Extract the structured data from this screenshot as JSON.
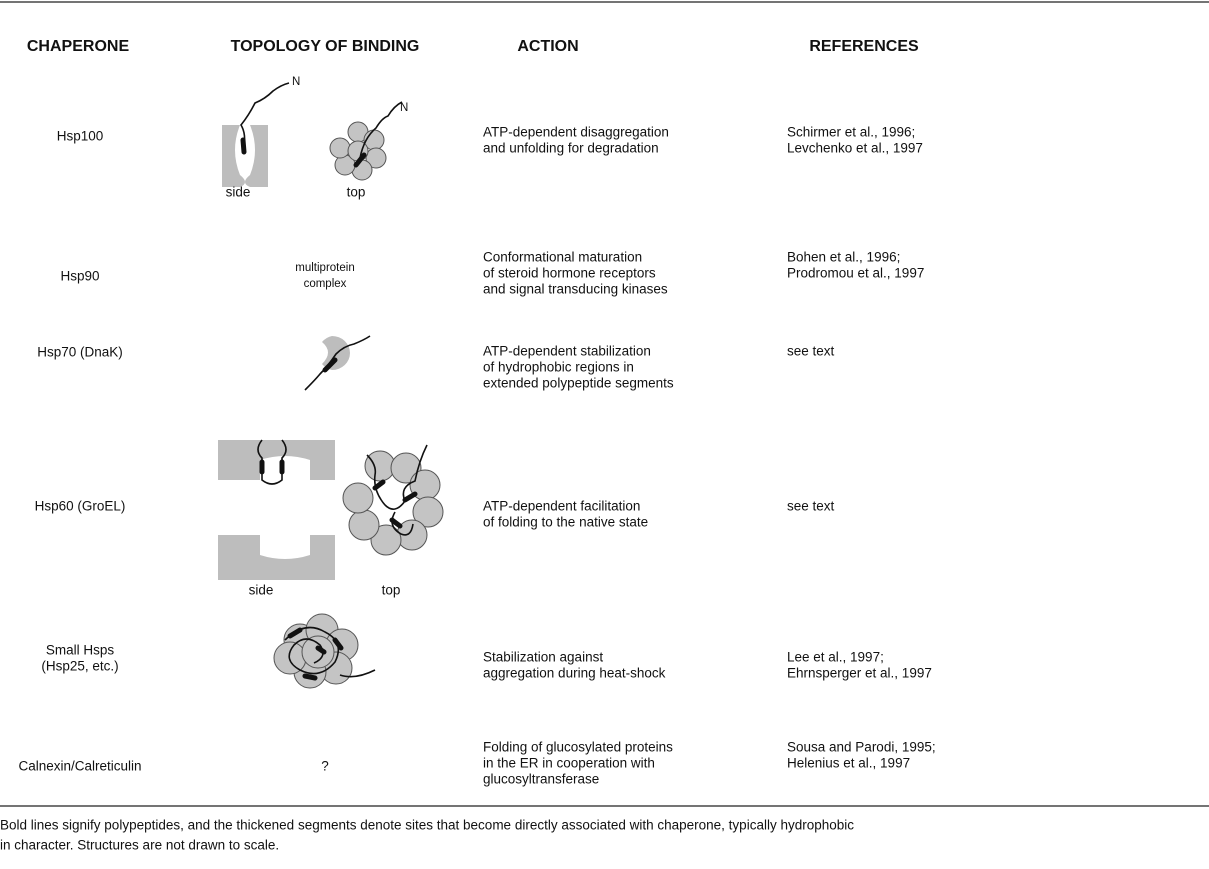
{
  "table": {
    "headers": [
      "CHAPERONE",
      "TOPOLOGY OF BINDING",
      "ACTION",
      "REFERENCES"
    ],
    "rows": [
      {
        "chaperone": [
          "Hsp100"
        ],
        "topology": [
          "side",
          "top"
        ],
        "action": [
          "ATP-dependent disaggregation",
          "and unfolding for degradation"
        ],
        "references": [
          "Schirmer et al., 1996;",
          "Levchenko et al., 1997"
        ]
      },
      {
        "chaperone": [
          "Hsp90"
        ],
        "topology": [
          "multiprotein",
          "complex"
        ],
        "action": [
          "Conformational maturation",
          "of steroid hormone receptors",
          "and signal transducing kinases"
        ],
        "references": [
          "Bohen et al., 1996;",
          "Prodromou et al., 1997"
        ]
      },
      {
        "chaperone": [
          "Hsp70 (DnaK)"
        ],
        "action": [
          "ATP-dependent stabilization",
          "of hydrophobic regions in",
          "extended polypeptide segments"
        ],
        "references": [
          "see text"
        ]
      },
      {
        "chaperone": [
          "Hsp60 (GroEL)"
        ],
        "topology": [
          "side",
          "top"
        ],
        "action": [
          "ATP-dependent facilitation",
          "of folding to the native state"
        ],
        "references": [
          "see text"
        ]
      },
      {
        "chaperone": [
          "Small Hsps",
          "(Hsp25, etc.)"
        ],
        "action": [
          "Stabilization against",
          "aggregation during heat-shock"
        ],
        "references": [
          "Lee et al., 1997;",
          "Ehrnsperger et al., 1997"
        ]
      },
      {
        "chaperone": [
          "Calnexin/Calreticulin"
        ],
        "topology": [
          "?"
        ],
        "action": [
          "Folding of glucosylated proteins",
          "in the ER in cooperation with",
          "glucosyltransferase"
        ],
        "references": [
          "Sousa and Parodi, 1995;",
          "Helenius et al., 1997"
        ]
      }
    ]
  },
  "caption": [
    "Bold lines signify polypeptides, and the thickened segments denote sites that become directly associated with chaperone, typically hydrophobic",
    "in character. Structures are not drawn to scale."
  ]
}
